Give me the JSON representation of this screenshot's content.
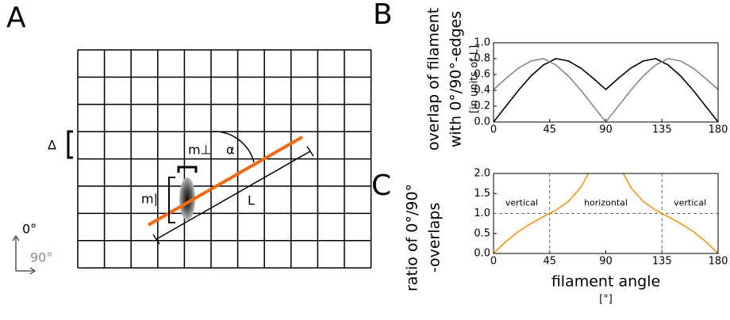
{
  "panel_a": {
    "letter": "A",
    "labels": {
      "delta": "Δ",
      "m_perp": "m⊥",
      "alpha": "α",
      "m_par": "m∥",
      "length": "L",
      "zero": "0°",
      "ninety": "90°"
    }
  },
  "chart_data": [
    {
      "type": "line",
      "letter": "B",
      "y_label_lines": [
        "overlap of filament",
        "with 0°/90°-edges"
      ],
      "y_unit": "[in units of L]",
      "x": [
        0,
        10,
        20,
        30,
        40,
        50,
        60,
        70,
        80,
        90,
        100,
        110,
        120,
        130,
        140,
        150,
        160,
        170,
        180
      ],
      "series": [
        {
          "color": "#000000",
          "values": [
            0,
            0.2,
            0.4,
            0.58,
            0.72,
            0.8,
            0.77,
            0.68,
            0.55,
            0.41,
            0.55,
            0.68,
            0.77,
            0.8,
            0.72,
            0.58,
            0.4,
            0.2,
            0
          ]
        },
        {
          "color": "#888888",
          "values": [
            0.41,
            0.55,
            0.68,
            0.77,
            0.8,
            0.72,
            0.58,
            0.4,
            0.2,
            0,
            0.2,
            0.4,
            0.58,
            0.72,
            0.8,
            0.77,
            0.68,
            0.55,
            0.41
          ]
        }
      ],
      "xlim": [
        0,
        180
      ],
      "xticks": [
        0,
        45,
        90,
        135,
        180
      ],
      "ylim": [
        0,
        1
      ],
      "yticks": [
        {
          "value": 0,
          "label": "0.0"
        },
        {
          "value": 0.2,
          "label": "0.2"
        },
        {
          "value": 0.4,
          "label": "0.4"
        },
        {
          "value": 0.6,
          "label": "0.6"
        },
        {
          "value": 0.8,
          "label": "0.8"
        },
        {
          "value": 1,
          "label": "1.0"
        }
      ]
    },
    {
      "type": "line",
      "letter": "C",
      "y_label_lines": [
        "ratio of 0°/90°",
        "-overlaps"
      ],
      "x_label": "filament angle",
      "x_unit": "[°]",
      "annotations": [
        "vertical",
        "horizontal",
        "vertical"
      ],
      "reference_lines": {
        "x": [
          45,
          135
        ],
        "y": [
          1
        ]
      },
      "x": [
        0,
        10,
        20,
        30,
        40,
        45,
        50,
        60,
        70,
        76,
        90,
        104,
        110,
        120,
        130,
        135,
        140,
        150,
        160,
        170,
        180
      ],
      "series": [
        {
          "color": "#f39419",
          "values": [
            0,
            0.3,
            0.55,
            0.75,
            0.92,
            1.0,
            1.08,
            1.3,
            1.65,
            2.0,
            null,
            2.0,
            1.65,
            1.3,
            1.08,
            1.0,
            0.92,
            0.75,
            0.55,
            0.3,
            0
          ]
        }
      ],
      "xlim": [
        0,
        180
      ],
      "xticks": [
        0,
        45,
        90,
        135,
        180
      ],
      "ylim": [
        0,
        2
      ],
      "yticks": [
        {
          "value": 0,
          "label": "0.0"
        },
        {
          "value": 0.5,
          "label": "0.5"
        },
        {
          "value": 1,
          "label": "1.0"
        },
        {
          "value": 1.5,
          "label": "1.5"
        },
        {
          "value": 2,
          "label": "2.0"
        }
      ]
    }
  ]
}
